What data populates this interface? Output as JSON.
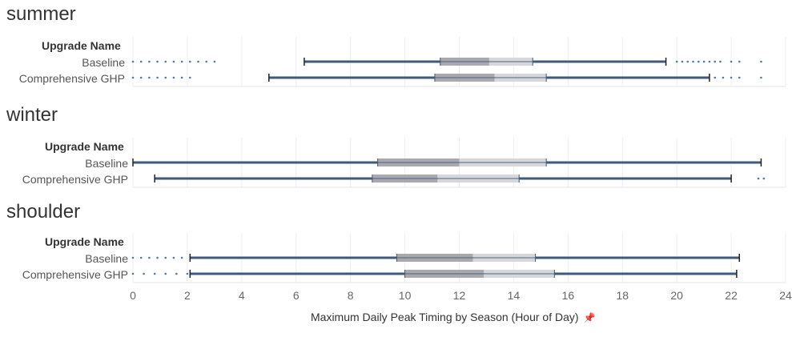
{
  "chart_data": {
    "type": "boxplot",
    "xlabel": "Maximum Daily Peak Timing by Season (Hour of Day)",
    "xlim": [
      0,
      24
    ],
    "x_ticks": [
      0,
      2,
      4,
      6,
      8,
      10,
      12,
      14,
      16,
      18,
      20,
      22,
      24
    ],
    "row_header": "Upgrade Name",
    "colors": {
      "whisker": "#3f5a7a",
      "outlier": "#4e79a7",
      "box_lower": "#a9a9ad",
      "box_upper": "#d5d7db",
      "grid": "#eeeeee"
    },
    "panels": [
      {
        "season": "summer",
        "series": [
          {
            "name": "Baseline",
            "min": 6.3,
            "q1": 11.3,
            "median": 13.1,
            "q3": 14.7,
            "max": 19.6,
            "outliers": [
              0.0,
              0.3,
              0.6,
              0.9,
              1.2,
              1.5,
              1.8,
              2.1,
              2.4,
              2.7,
              3.0,
              20.0,
              20.2,
              20.4,
              20.6,
              20.8,
              21.0,
              21.2,
              21.4,
              21.6,
              22.0,
              22.3,
              23.1
            ]
          },
          {
            "name": "Comprehensive GHP",
            "min": 5.0,
            "q1": 11.1,
            "median": 13.3,
            "q3": 15.2,
            "max": 21.2,
            "outliers": [
              0.0,
              0.3,
              0.6,
              0.9,
              1.2,
              1.5,
              1.8,
              2.1,
              21.4,
              21.7,
              22.0,
              22.3,
              23.1
            ]
          }
        ]
      },
      {
        "season": "winter",
        "series": [
          {
            "name": "Baseline",
            "min": 0.0,
            "q1": 9.0,
            "median": 12.0,
            "q3": 15.2,
            "max": 23.1,
            "outliers": [
              22.3,
              22.5,
              22.7
            ]
          },
          {
            "name": "Comprehensive GHP",
            "min": 0.8,
            "q1": 8.8,
            "median": 11.2,
            "q3": 14.2,
            "max": 22.0,
            "outliers": [
              1.0,
              2.0,
              2.3,
              2.6,
              2.9,
              20.8,
              21.0,
              21.2,
              21.4,
              21.6,
              23.0,
              23.2
            ]
          }
        ]
      },
      {
        "season": "shoulder",
        "series": [
          {
            "name": "Baseline",
            "min": 2.1,
            "q1": 9.7,
            "median": 12.5,
            "q3": 14.8,
            "max": 22.3,
            "outliers": [
              0.0,
              0.3,
              0.6,
              0.9,
              1.2,
              1.5,
              1.8,
              2.4,
              2.7,
              20.7,
              21.0,
              21.3,
              21.6,
              21.9
            ]
          },
          {
            "name": "Comprehensive GHP",
            "min": 2.1,
            "q1": 10.0,
            "median": 12.9,
            "q3": 15.5,
            "max": 22.2,
            "outliers": [
              0.0,
              0.4,
              0.8,
              1.2,
              1.6,
              2.0,
              2.4,
              2.7,
              3.0,
              20.6,
              20.9,
              21.2,
              21.5,
              21.8
            ]
          }
        ]
      }
    ]
  }
}
